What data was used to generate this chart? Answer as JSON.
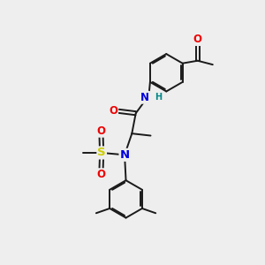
{
  "background_color": "#eeeeee",
  "bond_color": "#1a1a1a",
  "atom_colors": {
    "N": "#0000dd",
    "O": "#ee0000",
    "S": "#cccc00",
    "H_on_N": "#008888",
    "C": "#1a1a1a"
  },
  "lw": 1.4,
  "fs": 8.5,
  "r_ring": 0.72
}
